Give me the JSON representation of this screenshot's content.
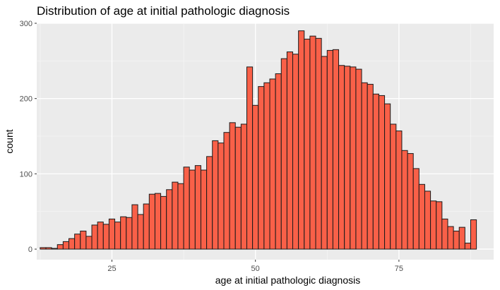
{
  "chart_data": {
    "type": "bar",
    "title": "Distribution of age at initial pathologic diagnosis",
    "xlabel": "age at initial pathologic diagnosis",
    "ylabel": "count",
    "xlim": [
      11.9,
      91.5
    ],
    "ylim": [
      -14,
      300
    ],
    "x_ticks": [
      25,
      50,
      75
    ],
    "y_ticks": [
      0,
      100,
      200,
      300
    ],
    "grid": true,
    "legend": "none",
    "bin_width": 1,
    "bin_start": 13,
    "values": [
      2,
      2,
      1,
      6,
      10,
      14,
      20,
      24,
      17,
      32,
      36,
      33,
      40,
      36,
      43,
      42,
      59,
      46,
      60,
      73,
      74,
      70,
      79,
      89,
      87,
      109,
      105,
      111,
      105,
      123,
      144,
      141,
      155,
      168,
      162,
      166,
      242,
      191,
      216,
      221,
      226,
      233,
      253,
      262,
      259,
      290,
      279,
      283,
      280,
      256,
      264,
      265,
      244,
      243,
      242,
      239,
      221,
      219,
      206,
      204,
      193,
      166,
      157,
      131,
      127,
      107,
      86,
      77,
      64,
      63,
      40,
      30,
      24,
      29,
      8,
      39
    ],
    "colors": {
      "bar_fill": "#F96048",
      "bar_stroke": "#1a1a1a",
      "panel": "#EBEBEB",
      "grid_major": "#FFFFFF",
      "grid_minor": "#F5F5F5",
      "tick_text": "#4D4D4D"
    }
  }
}
